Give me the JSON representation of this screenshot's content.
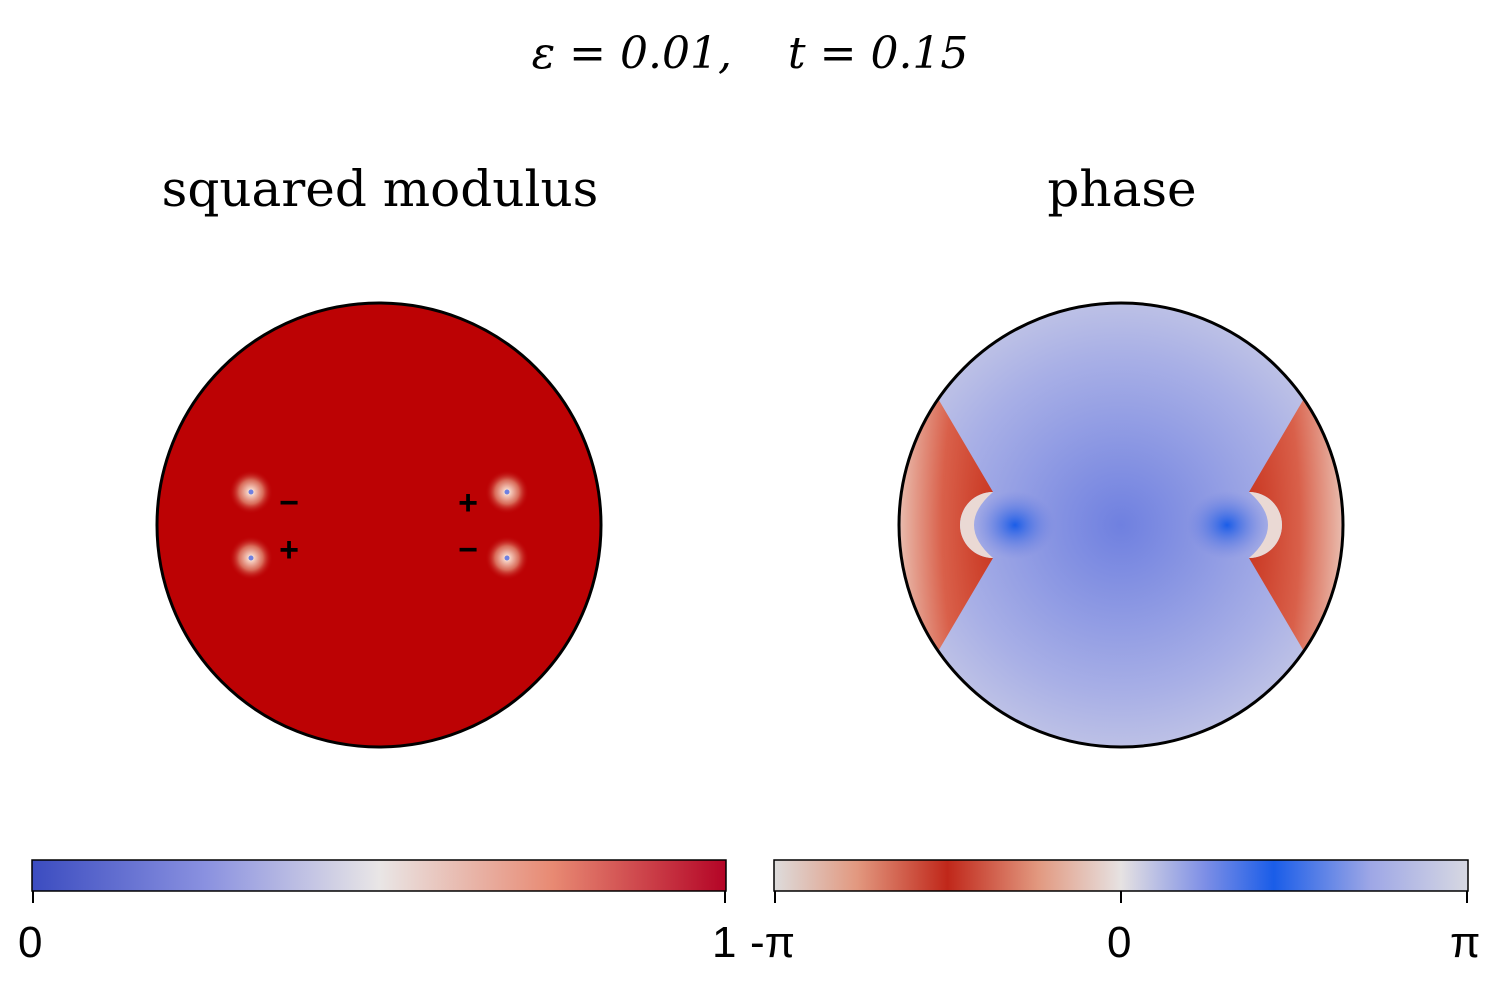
{
  "figure": {
    "title": "ε = 0.01,    t = 0.15",
    "panels": [
      {
        "title": "squared modulus",
        "vortex_signs": [
          "−",
          "+",
          "+",
          "−"
        ]
      },
      {
        "title": "phase"
      }
    ],
    "colorbars": [
      {
        "name": "squared modulus",
        "ticks": [
          "0",
          "1"
        ],
        "range": [
          0,
          1
        ],
        "colors": [
          "#3b4cc0",
          "#dddcdc",
          "#b40426"
        ]
      },
      {
        "name": "phase",
        "ticks": [
          "-π",
          "0",
          "π"
        ],
        "colors": [
          "#dddcdc",
          "#c0271a",
          "#dddcdc",
          "#1a5de8",
          "#dddcdc"
        ]
      }
    ],
    "colors": {
      "modulus_fill": "#bc0204",
      "phase_background": "#a9b0e6",
      "phase_center": "#6f80e0",
      "phase_red": "#c8341f",
      "phase_blue": "#1a5de8"
    }
  }
}
